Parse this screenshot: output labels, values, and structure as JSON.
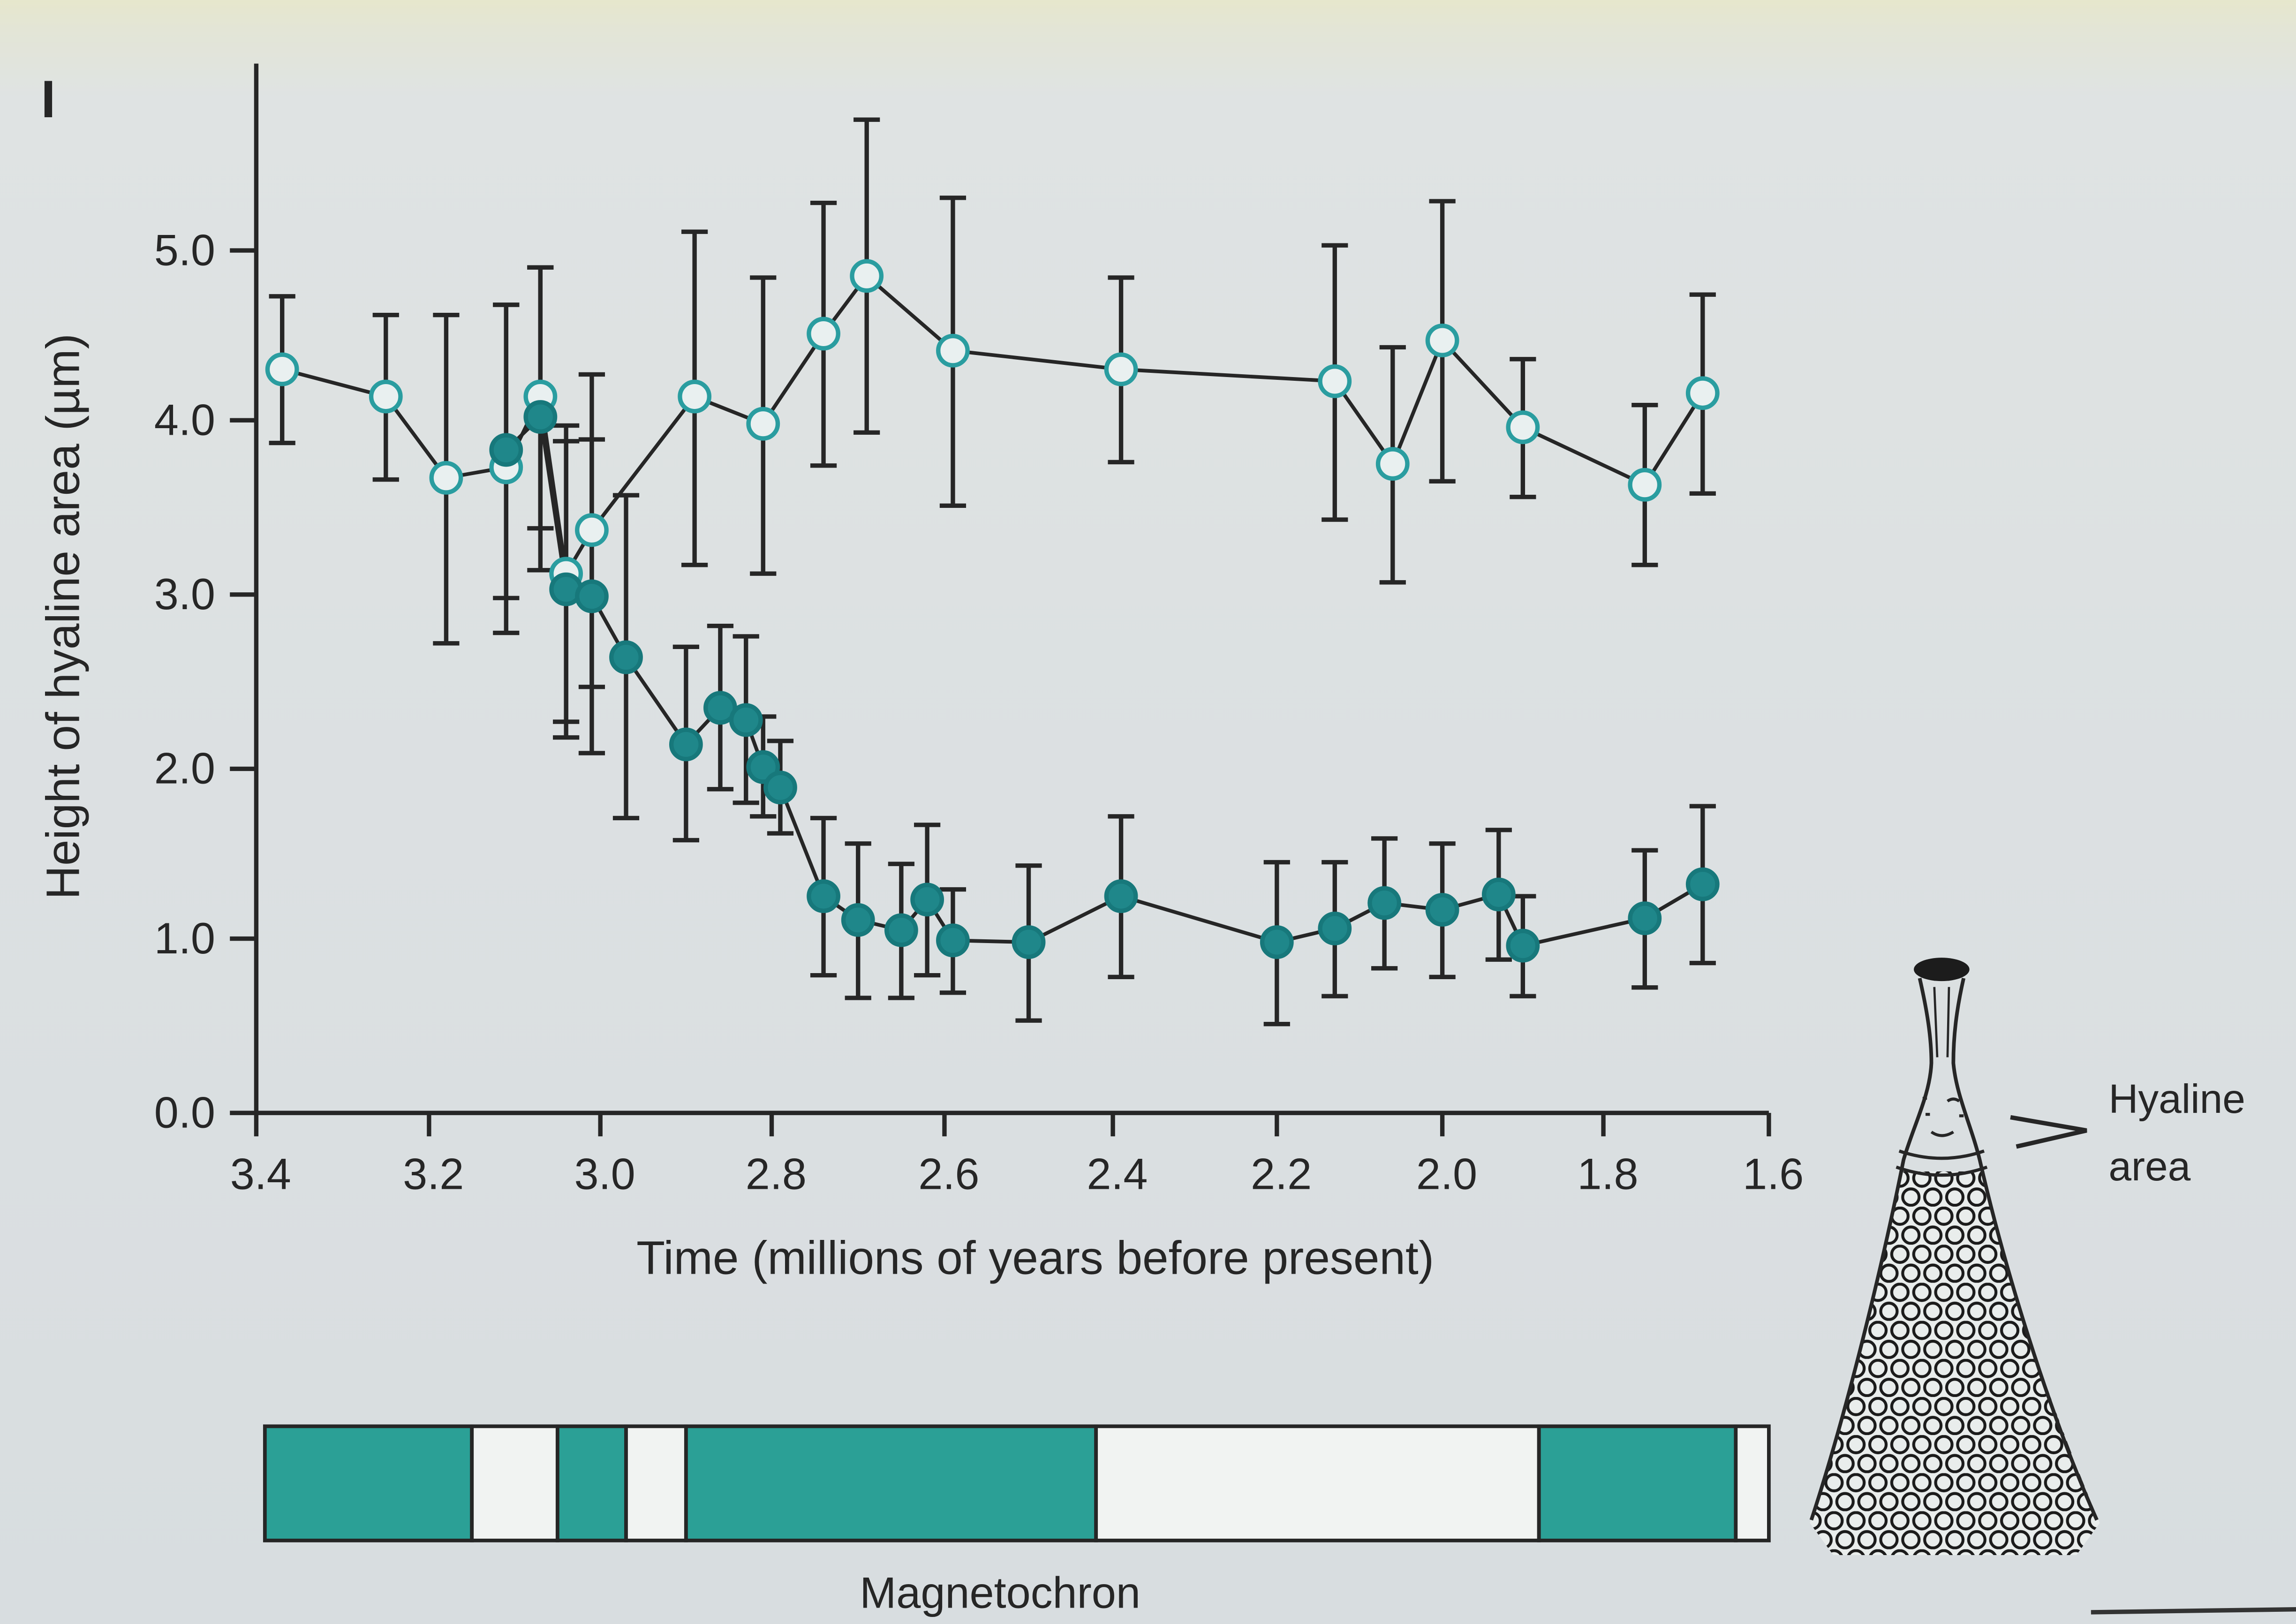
{
  "panel_label": "I",
  "chart_data": {
    "type": "line",
    "xlabel": "Time (millions of years before present)",
    "ylabel": "Height of hyaline area (µm)",
    "xticks": [
      "3.4",
      "3.2",
      "3.0",
      "2.8",
      "2.6",
      "2.4",
      "2.2",
      "2.0",
      "1.8",
      "1.6"
    ],
    "yticks": [
      "0.0",
      "1.0",
      "2.0",
      "3.0",
      "4.0",
      "5.0"
    ],
    "xlim": [
      3.4,
      1.6
    ],
    "ylim": [
      0,
      6.1
    ],
    "x_reversed": true,
    "grid": false,
    "legend": "none",
    "series": [
      {
        "marker": "open-circle",
        "stroke": "#2a9da0",
        "fill": "#e9f0f0",
        "x": [
          3.37,
          3.25,
          3.18,
          3.11,
          3.07,
          3.04,
          3.01,
          2.89,
          2.81,
          2.74,
          2.69,
          2.59,
          2.39,
          2.13,
          2.06,
          2.0,
          1.9,
          1.75,
          1.68
        ],
        "y": [
          4.3,
          4.14,
          3.67,
          3.73,
          4.14,
          3.12,
          3.37,
          4.14,
          3.98,
          4.51,
          4.85,
          4.41,
          4.3,
          4.23,
          3.75,
          4.47,
          3.96,
          3.63,
          4.16
        ],
        "yerr": [
          0.43,
          0.48,
          0.95,
          0.95,
          0.76,
          0.85,
          0.9,
          0.97,
          0.86,
          0.77,
          0.92,
          0.9,
          0.54,
          0.8,
          0.68,
          0.82,
          0.4,
          0.46,
          0.58
        ]
      },
      {
        "marker": "filled-circle",
        "stroke": "#17787b",
        "fill": "#1f878a",
        "x": [
          3.11,
          3.07,
          3.04,
          3.01,
          2.97,
          2.9,
          2.86,
          2.83,
          2.81,
          2.79,
          2.74,
          2.7,
          2.65,
          2.62,
          2.59,
          2.5,
          2.39,
          2.2,
          2.13,
          2.07,
          2.0,
          1.93,
          1.9,
          1.75,
          1.68
        ],
        "y": [
          3.83,
          4.02,
          3.03,
          2.99,
          2.64,
          2.14,
          2.35,
          2.28,
          2.01,
          1.89,
          1.25,
          1.11,
          1.05,
          1.23,
          0.99,
          0.98,
          1.25,
          0.98,
          1.06,
          1.21,
          1.17,
          1.26,
          0.96,
          1.12,
          1.32
        ],
        "yerr": [
          0.85,
          0.88,
          0.85,
          0.9,
          0.93,
          0.56,
          0.47,
          0.48,
          0.29,
          0.27,
          0.46,
          0.45,
          0.39,
          0.44,
          0.3,
          0.45,
          0.47,
          0.47,
          0.39,
          0.38,
          0.39,
          0.38,
          0.29,
          0.4,
          0.46
        ]
      }
    ],
    "magnetochron": {
      "label": "Magnetochron",
      "segments": [
        {
          "start": 3.39,
          "end": 3.15,
          "color": "#2ba096"
        },
        {
          "start": 3.15,
          "end": 3.05,
          "color": "#f1f3f2"
        },
        {
          "start": 3.05,
          "end": 2.97,
          "color": "#2ba096"
        },
        {
          "start": 2.97,
          "end": 2.9,
          "color": "#f1f3f2"
        },
        {
          "start": 2.9,
          "end": 2.42,
          "color": "#2ba096"
        },
        {
          "start": 2.42,
          "end": 1.88,
          "color": "#f1f3f2"
        },
        {
          "start": 1.88,
          "end": 1.64,
          "color": "#2ba096"
        },
        {
          "start": 1.64,
          "end": 1.6,
          "color": "#f1f3f2"
        }
      ]
    }
  },
  "annotation": {
    "line1": "Hyaline",
    "line2": "area"
  },
  "colors": {
    "ink": "#262626",
    "teal": "#2ba096",
    "paper": "#dfe3e3"
  }
}
